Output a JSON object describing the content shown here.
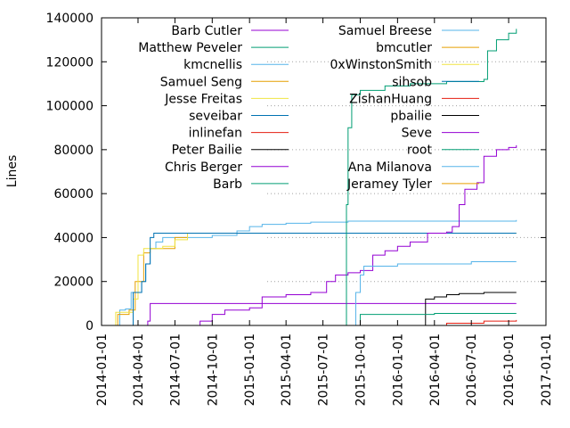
{
  "chart_data": {
    "type": "line",
    "title": "",
    "xlabel": "",
    "ylabel": "Lines",
    "x_type": "date",
    "xlim": [
      "2014-01-01",
      "2017-01-01"
    ],
    "ylim": [
      0,
      140000
    ],
    "x_ticks": [
      "2014-01-01",
      "2014-04-01",
      "2014-07-01",
      "2014-10-01",
      "2015-01-01",
      "2015-04-01",
      "2015-07-01",
      "2015-10-01",
      "2016-01-01",
      "2016-04-01",
      "2016-07-01",
      "2016-10-01",
      "2017-01-01"
    ],
    "y_ticks": [
      0,
      20000,
      40000,
      60000,
      80000,
      100000,
      120000,
      140000
    ],
    "y_tick_labels": [
      "0",
      "20000",
      "40000",
      "60000",
      "80000",
      "100000",
      "120000",
      "140000"
    ],
    "grid": "dotted gray at right-side tick positions",
    "legend_position": "top, two columns",
    "series": [
      {
        "name": "Barb Cutler",
        "color": "#9400d3",
        "points": [
          [
            "2014-03-20",
            0
          ],
          [
            "2014-04-25",
            2000
          ],
          [
            "2014-05-01",
            10000
          ],
          [
            "2016-10-20",
            10000
          ]
        ]
      },
      {
        "name": "Matthew Peveler",
        "color": "#009e73",
        "points": [
          [
            "2015-09-01",
            0
          ],
          [
            "2016-10-20",
            0
          ]
        ]
      },
      {
        "name": "kmcnellis",
        "color": "#56b4e9",
        "points": [
          [
            "2014-02-10",
            0
          ],
          [
            "2014-02-15",
            7000
          ],
          [
            "2014-03-01",
            7500
          ],
          [
            "2014-03-15",
            15000
          ],
          [
            "2014-04-10",
            20000
          ],
          [
            "2014-04-20",
            28000
          ],
          [
            "2014-05-01",
            35000
          ],
          [
            "2014-05-15",
            38000
          ],
          [
            "2014-06-01",
            40000
          ],
          [
            "2014-10-01",
            41000
          ],
          [
            "2014-12-01",
            43000
          ],
          [
            "2015-01-01",
            45000
          ],
          [
            "2015-02-01",
            46000
          ],
          [
            "2015-04-01",
            46500
          ],
          [
            "2015-06-01",
            47000
          ],
          [
            "2015-09-01",
            47500
          ],
          [
            "2016-10-20",
            48000
          ]
        ]
      },
      {
        "name": "Samuel Seng",
        "color": "#e69f00",
        "points": [
          [
            "2014-02-01",
            0
          ],
          [
            "2014-02-10",
            5000
          ],
          [
            "2014-03-10",
            7000
          ],
          [
            "2014-03-25",
            20000
          ],
          [
            "2014-04-15",
            33000
          ],
          [
            "2014-05-01",
            35000
          ],
          [
            "2014-06-01",
            35000
          ],
          [
            "2014-07-01",
            40000
          ],
          [
            "2014-08-01",
            42000
          ],
          [
            "2016-10-20",
            42000
          ]
        ]
      },
      {
        "name": "Jesse Freitas",
        "color": "#f0e442",
        "points": [
          [
            "2014-02-01",
            0
          ],
          [
            "2014-02-05",
            6000
          ],
          [
            "2014-03-01",
            6000
          ],
          [
            "2014-03-20",
            12000
          ],
          [
            "2014-04-01",
            32000
          ],
          [
            "2014-04-15",
            35000
          ],
          [
            "2014-06-01",
            36000
          ],
          [
            "2014-07-01",
            39000
          ],
          [
            "2014-08-01",
            42000
          ],
          [
            "2016-10-20",
            42000
          ]
        ]
      },
      {
        "name": "seveibar",
        "color": "#0072b2",
        "points": [
          [
            "2014-03-15",
            0
          ],
          [
            "2014-03-20",
            15000
          ],
          [
            "2014-04-01",
            15000
          ],
          [
            "2014-04-10",
            20000
          ],
          [
            "2014-04-20",
            28000
          ],
          [
            "2014-05-01",
            40000
          ],
          [
            "2014-05-10",
            42000
          ],
          [
            "2016-10-20",
            42000
          ]
        ]
      },
      {
        "name": "inlinefan",
        "color": "#e51e10",
        "points": [
          [
            "2014-01-01",
            0
          ],
          [
            "2016-10-20",
            0
          ]
        ]
      },
      {
        "name": "Peter Bailie",
        "color": "#000000",
        "points": [
          [
            "2016-03-01",
            0
          ],
          [
            "2016-03-10",
            12000
          ],
          [
            "2016-04-01",
            13000
          ],
          [
            "2016-05-01",
            14000
          ],
          [
            "2016-06-01",
            14500
          ],
          [
            "2016-08-01",
            15000
          ],
          [
            "2016-10-20",
            15000
          ]
        ]
      },
      {
        "name": "Chris Berger",
        "color": "#9400d3",
        "points": [
          [
            "2014-06-01",
            0
          ],
          [
            "2014-09-01",
            2000
          ],
          [
            "2014-10-01",
            5000
          ],
          [
            "2014-11-01",
            7000
          ],
          [
            "2015-01-01",
            8000
          ],
          [
            "2015-02-01",
            13000
          ],
          [
            "2015-04-01",
            14000
          ],
          [
            "2015-06-01",
            15000
          ],
          [
            "2015-07-10",
            20000
          ],
          [
            "2015-08-01",
            23000
          ],
          [
            "2015-09-01",
            24000
          ],
          [
            "2015-10-01",
            25000
          ],
          [
            "2015-11-01",
            32000
          ],
          [
            "2015-12-01",
            34000
          ],
          [
            "2016-01-01",
            36000
          ],
          [
            "2016-02-01",
            38000
          ],
          [
            "2016-03-15",
            42000
          ],
          [
            "2016-05-01",
            42500
          ],
          [
            "2016-05-15",
            45000
          ],
          [
            "2016-06-01",
            55000
          ],
          [
            "2016-06-15",
            62000
          ],
          [
            "2016-07-15",
            65000
          ],
          [
            "2016-08-01",
            77000
          ],
          [
            "2016-09-01",
            80000
          ],
          [
            "2016-10-01",
            81000
          ],
          [
            "2016-10-20",
            82000
          ]
        ]
      },
      {
        "name": "Barb",
        "color": "#009e73",
        "points": [
          [
            "2015-08-25",
            0
          ],
          [
            "2015-08-28",
            55000
          ],
          [
            "2015-09-01",
            90000
          ],
          [
            "2015-09-10",
            105000
          ],
          [
            "2015-10-01",
            107000
          ],
          [
            "2015-12-01",
            109000
          ],
          [
            "2016-02-01",
            110000
          ],
          [
            "2016-05-01",
            111000
          ],
          [
            "2016-08-01",
            112000
          ],
          [
            "2016-08-10",
            125000
          ],
          [
            "2016-09-01",
            130000
          ],
          [
            "2016-10-01",
            133000
          ],
          [
            "2016-10-20",
            135000
          ]
        ]
      },
      {
        "name": "Samuel Breese",
        "color": "#56b4e9",
        "points": [
          [
            "2015-09-15",
            0
          ],
          [
            "2015-09-20",
            15000
          ],
          [
            "2015-10-01",
            23000
          ],
          [
            "2015-10-10",
            27000
          ],
          [
            "2016-01-01",
            28000
          ],
          [
            "2016-07-01",
            29000
          ],
          [
            "2016-10-20",
            29000
          ]
        ]
      },
      {
        "name": "bmcutler",
        "color": "#e69f00",
        "points": [
          [
            "2014-01-01",
            0
          ],
          [
            "2016-10-20",
            0
          ]
        ]
      },
      {
        "name": "0xWinstonSmith",
        "color": "#f0e442",
        "points": [
          [
            "2014-01-01",
            0
          ],
          [
            "2016-10-20",
            0
          ]
        ]
      },
      {
        "name": "sihsob",
        "color": "#0072b2",
        "points": [
          [
            "2014-01-01",
            0
          ],
          [
            "2016-10-20",
            0
          ]
        ]
      },
      {
        "name": "ZishanHuang",
        "color": "#e51e10",
        "points": [
          [
            "2016-01-01",
            0
          ],
          [
            "2016-05-01",
            1000
          ],
          [
            "2016-08-01",
            2000
          ],
          [
            "2016-10-20",
            2500
          ]
        ]
      },
      {
        "name": "pbailie",
        "color": "#000000",
        "points": [
          [
            "2014-01-01",
            0
          ],
          [
            "2016-10-20",
            0
          ]
        ]
      },
      {
        "name": "Seve",
        "color": "#9400d3",
        "points": [
          [
            "2015-06-01",
            0
          ],
          [
            "2016-10-20",
            0
          ]
        ]
      },
      {
        "name": "root",
        "color": "#009e73",
        "points": [
          [
            "2015-09-25",
            0
          ],
          [
            "2015-10-01",
            5000
          ],
          [
            "2016-04-01",
            5500
          ],
          [
            "2016-10-20",
            5500
          ]
        ]
      },
      {
        "name": "Ana Milanova",
        "color": "#56b4e9",
        "points": [
          [
            "2016-01-01",
            0
          ],
          [
            "2016-10-20",
            0
          ]
        ]
      },
      {
        "name": "Jeramey Tyler",
        "color": "#e69f00",
        "points": [
          [
            "2016-01-01",
            0
          ],
          [
            "2016-10-20",
            0
          ]
        ]
      }
    ]
  }
}
